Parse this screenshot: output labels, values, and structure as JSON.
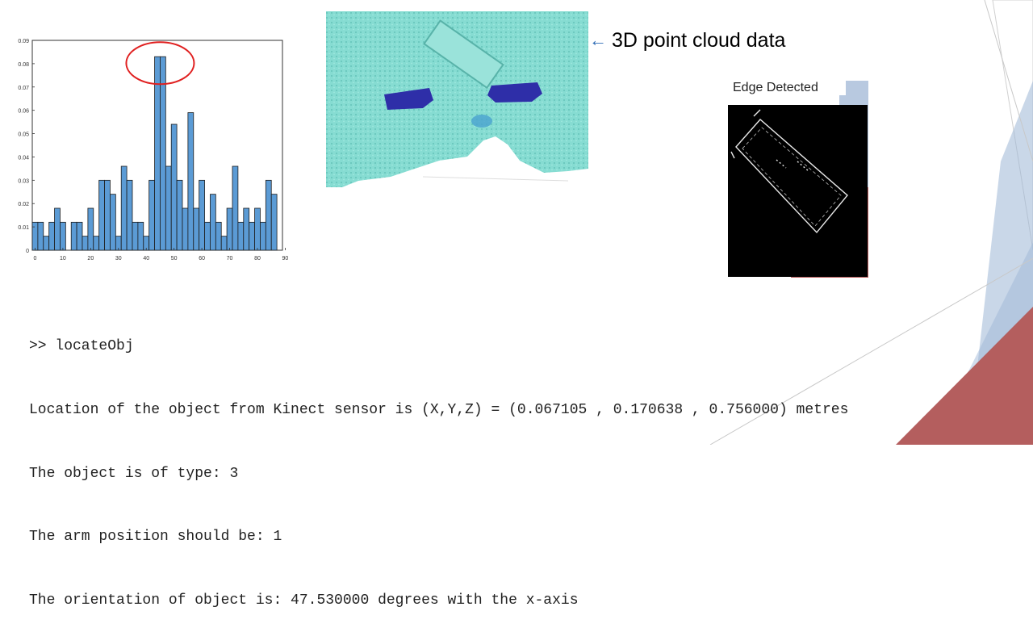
{
  "chart_data": {
    "type": "bar",
    "x": [
      0,
      2,
      4,
      6,
      8,
      10,
      12,
      14,
      16,
      18,
      20,
      22,
      24,
      26,
      28,
      30,
      32,
      34,
      36,
      38,
      40,
      42,
      44,
      46,
      48,
      50,
      52,
      54,
      56,
      58,
      60,
      62,
      64,
      66,
      68,
      70,
      72,
      74,
      76,
      78,
      80,
      82,
      84,
      86,
      88
    ],
    "values": [
      0.012,
      0.012,
      0.006,
      0.012,
      0.018,
      0.012,
      0,
      0.012,
      0.012,
      0.006,
      0.018,
      0.006,
      0.03,
      0.03,
      0.024,
      0.006,
      0.036,
      0.03,
      0.012,
      0.012,
      0.006,
      0.03,
      0.083,
      0.083,
      0.036,
      0.054,
      0.03,
      0.018,
      0.059,
      0.018,
      0.03,
      0.012,
      0.024,
      0.012,
      0.006,
      0.018,
      0.036,
      0.012,
      0.018,
      0.012,
      0.018,
      0.012,
      0.03,
      0.024,
      0
    ],
    "xticks": [
      "0",
      "10",
      "20",
      "30",
      "40",
      "50",
      "60",
      "70",
      "80",
      "90"
    ],
    "yticks": [
      "0",
      "0.01",
      "0.02",
      "0.03",
      "0.04",
      "0.05",
      "0.06",
      "0.07",
      "0.08",
      "0.09"
    ],
    "xlim": [
      0,
      90
    ],
    "ylim": [
      0,
      0.09
    ],
    "bar_color": "#5b9bd5",
    "highlight": "red circle around peak near 45"
  },
  "point_cloud": {
    "label": "3D point cloud data",
    "arrow": "←"
  },
  "edge": {
    "title": "Edge Detected"
  },
  "console": {
    "lines": [
      ">> locateObj",
      "Location of the object from Kinect sensor is (X,Y,Z) = (0.067105 , 0.170638 , 0.756000) metres",
      "The object is of type: 3",
      "The arm position should be: 1",
      "The orientation of object is: 47.530000 degrees with the x-axis"
    ]
  },
  "colors": {
    "accent_blue": "#9fb8d8",
    "accent_red": "#b85c5c",
    "cloud_teal": "#7fd6cc",
    "cloud_dark": "#2a2a9e"
  }
}
